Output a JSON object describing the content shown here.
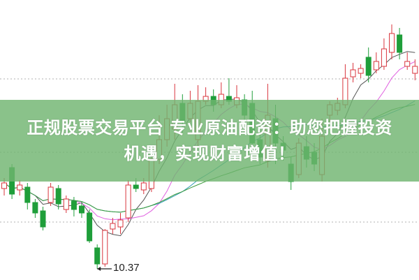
{
  "banner": {
    "line1": "正规股票交易平台 专业原油配资：助您把握投资",
    "line2": "机遇，实现财富增值！"
  },
  "chart_data": {
    "type": "candlestick",
    "low_annotation": "10.37",
    "ylim": [
      10.0,
      14.22
    ],
    "grid_y": [
      13.09,
      12.04,
      11.04
    ],
    "colors": {
      "up": "#d9363e",
      "down": "#1f9e3a",
      "ma": [
        "#555555",
        "#e060e0",
        "#2a9ab0",
        "#3a9a3a"
      ],
      "grid": "#b0b0b0"
    },
    "candles": [
      [
        11.52,
        11.6,
        11.67,
        11.42
      ],
      [
        11.82,
        11.44,
        11.87,
        11.37
      ],
      [
        11.5,
        11.57,
        11.64,
        11.42
      ],
      [
        11.54,
        11.32,
        11.6,
        11.22
      ],
      [
        11.32,
        11.17,
        11.37,
        11.1
      ],
      [
        11.2,
        10.97,
        11.26,
        10.92
      ],
      [
        11.32,
        11.54,
        11.6,
        11.27
      ],
      [
        11.52,
        11.3,
        11.57,
        11.22
      ],
      [
        11.22,
        11.37,
        11.42,
        11.17
      ],
      [
        11.34,
        11.22,
        11.4,
        11.12
      ],
      [
        11.27,
        11.17,
        11.32,
        11.1
      ],
      [
        11.17,
        10.77,
        11.22,
        10.74
      ],
      [
        10.67,
        10.44,
        10.72,
        10.37
      ],
      [
        10.44,
        10.92,
        10.94,
        10.4
      ],
      [
        10.94,
        11.02,
        11.1,
        10.87
      ],
      [
        10.97,
        11.07,
        11.17,
        10.87
      ],
      [
        11.1,
        11.57,
        11.64,
        11.04
      ],
      [
        11.57,
        11.52,
        11.67,
        11.47
      ],
      [
        11.5,
        11.6,
        11.67,
        11.44
      ],
      [
        11.52,
        11.94,
        12.02,
        11.47
      ],
      [
        11.94,
        12.22,
        12.57,
        11.87
      ],
      [
        12.22,
        12.52,
        12.72,
        12.12
      ],
      [
        12.37,
        12.72,
        13.02,
        12.22
      ],
      [
        12.74,
        12.47,
        12.87,
        12.32
      ],
      [
        12.52,
        12.74,
        12.92,
        12.47
      ],
      [
        12.22,
        12.77,
        13.0,
        12.12
      ],
      [
        12.77,
        12.84,
        12.97,
        12.72
      ],
      [
        12.84,
        12.72,
        12.94,
        12.62
      ],
      [
        12.72,
        12.87,
        13.04,
        12.67
      ],
      [
        12.84,
        12.77,
        13.1,
        12.72
      ],
      [
        12.72,
        12.82,
        13.0,
        12.67
      ],
      [
        12.79,
        12.57,
        12.87,
        12.47
      ],
      [
        12.74,
        12.17,
        12.92,
        12.07
      ],
      [
        12.22,
        11.97,
        12.37,
        11.87
      ],
      [
        11.92,
        12.57,
        13.02,
        11.82
      ],
      [
        12.52,
        12.17,
        12.72,
        11.87
      ],
      [
        12.17,
        12.07,
        12.27,
        11.92
      ],
      [
        11.87,
        11.62,
        11.97,
        11.5
      ],
      [
        11.72,
        12.17,
        12.24,
        11.67
      ],
      [
        12.12,
        11.94,
        12.27,
        11.82
      ],
      [
        12.04,
        11.87,
        12.17,
        11.77
      ],
      [
        11.72,
        12.27,
        12.52,
        11.62
      ],
      [
        12.57,
        12.72,
        12.77,
        12.47
      ],
      [
        12.64,
        12.74,
        12.82,
        12.57
      ],
      [
        12.72,
        13.1,
        13.3,
        12.67
      ],
      [
        13.12,
        13.22,
        13.32,
        13.04
      ],
      [
        13.17,
        13.24,
        13.3,
        13.1
      ],
      [
        13.4,
        13.14,
        13.54,
        13.04
      ],
      [
        13.22,
        13.34,
        13.47,
        13.17
      ],
      [
        13.27,
        13.52,
        13.67,
        13.22
      ],
      [
        13.47,
        13.74,
        13.87,
        13.37
      ],
      [
        13.72,
        13.47,
        13.82,
        13.37
      ],
      [
        13.27,
        13.34,
        13.47,
        13.22
      ],
      [
        13.17,
        13.27,
        13.37,
        13.07
      ]
    ]
  }
}
